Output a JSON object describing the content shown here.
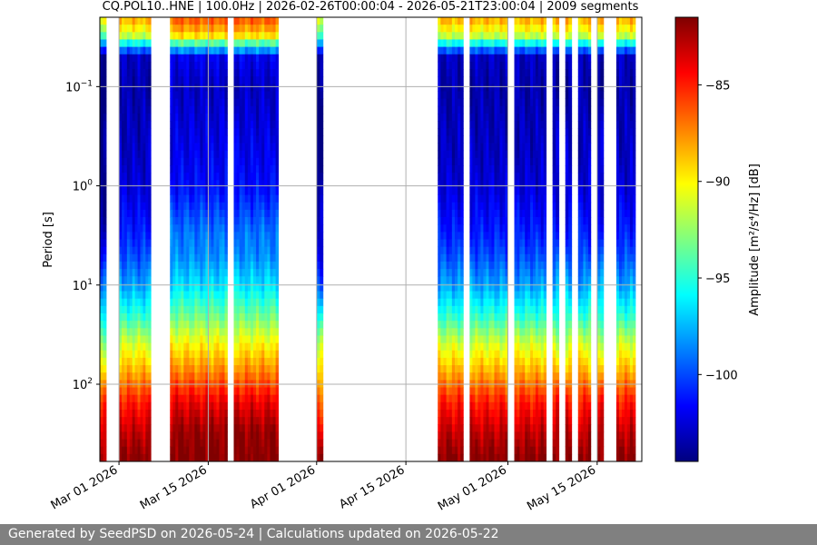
{
  "footer_text": "Generated by SeedPSD on 2026-05-24 | Calculations updated on 2026-05-22",
  "chart_data": {
    "type": "heatmap",
    "title": "CQ.POL10..HNE | 100.0Hz | 2026-02-26T00:00:04 - 2026-05-21T23:00:04 | 2009 segments",
    "xlabel": "",
    "ylabel": "Period [s]",
    "colorbar_label": "Amplitude [m²/s⁴/Hz] [dB]",
    "colormap": "jet",
    "y_scale": "log",
    "y_inverted": true,
    "xlim": [
      "2026-02-26",
      "2026-05-22"
    ],
    "ylim": [
      0.02,
      600
    ],
    "clim": [
      -104.5,
      -81.5
    ],
    "grid": true,
    "x_ticks": [
      "Mar 01 2026",
      "Mar 15 2026",
      "Apr 01 2026",
      "Apr 15 2026",
      "May 01 2026",
      "May 15 2026"
    ],
    "x_tick_dates": [
      "2026-03-01",
      "2026-03-15",
      "2026-04-01",
      "2026-04-15",
      "2026-05-01",
      "2026-05-15"
    ],
    "y_ticks": [
      {
        "label": "10",
        "exp": "−1",
        "value": 0.1
      },
      {
        "label": "10",
        "exp": "0",
        "value": 1
      },
      {
        "label": "10",
        "exp": "1",
        "value": 10
      },
      {
        "label": "10",
        "exp": "2",
        "value": 100
      }
    ],
    "colorbar_ticks": [
      -85,
      -90,
      -95,
      -100
    ],
    "colorbar_tick_labels": [
      "−85",
      "−90",
      "−95",
      "−100"
    ],
    "data_segments": [
      {
        "start": "2026-02-26",
        "end": "2026-02-27",
        "profile": "quiet"
      },
      {
        "start": "2026-03-01",
        "end": "2026-03-06",
        "profile": "normal"
      },
      {
        "start": "2026-03-09",
        "end": "2026-03-18",
        "profile": "noisy"
      },
      {
        "start": "2026-03-19",
        "end": "2026-03-26",
        "profile": "noisy"
      },
      {
        "start": "2026-04-01",
        "end": "2026-04-02",
        "profile": "quiet"
      },
      {
        "start": "2026-04-20",
        "end": "2026-04-24",
        "profile": "normal"
      },
      {
        "start": "2026-04-25",
        "end": "2026-05-01",
        "profile": "normal"
      },
      {
        "start": "2026-05-02",
        "end": "2026-05-07",
        "profile": "normal"
      },
      {
        "start": "2026-05-08",
        "end": "2026-05-09",
        "profile": "normal"
      },
      {
        "start": "2026-05-10",
        "end": "2026-05-11",
        "profile": "normal"
      },
      {
        "start": "2026-05-12",
        "end": "2026-05-14",
        "profile": "normal"
      },
      {
        "start": "2026-05-15",
        "end": "2026-05-16",
        "profile": "normal"
      },
      {
        "start": "2026-05-18",
        "end": "2026-05-21",
        "profile": "normal"
      }
    ],
    "psd_profile": [
      {
        "period": 0.02,
        "normal": -88,
        "quiet": -90,
        "noisy": -86
      },
      {
        "period": 0.03,
        "normal": -91,
        "quiet": -94,
        "noisy": -89
      },
      {
        "period": 0.05,
        "normal": -103,
        "quiet": -104,
        "noisy": -102
      },
      {
        "period": 0.1,
        "normal": -103.5,
        "quiet": -104.5,
        "noisy": -103
      },
      {
        "period": 0.5,
        "normal": -103,
        "quiet": -104.5,
        "noisy": -102
      },
      {
        "period": 1,
        "normal": -102.5,
        "quiet": -104,
        "noisy": -101.5
      },
      {
        "period": 3,
        "normal": -101,
        "quiet": -103,
        "noisy": -99
      },
      {
        "period": 5,
        "normal": -100,
        "quiet": -102,
        "noisy": -98.5
      },
      {
        "period": 10,
        "normal": -98,
        "quiet": -99.5,
        "noisy": -96.5
      },
      {
        "period": 20,
        "normal": -95,
        "quiet": -96,
        "noisy": -93.5
      },
      {
        "period": 40,
        "normal": -91,
        "quiet": -92,
        "noisy": -90
      },
      {
        "period": 80,
        "normal": -88,
        "quiet": -89,
        "noisy": -87
      },
      {
        "period": 150,
        "normal": -85,
        "quiet": -86,
        "noisy": -84
      },
      {
        "period": 300,
        "normal": -83,
        "quiet": -84,
        "noisy": -82
      },
      {
        "period": 600,
        "normal": -81.5,
        "quiet": -82,
        "noisy": -81.5
      }
    ]
  }
}
